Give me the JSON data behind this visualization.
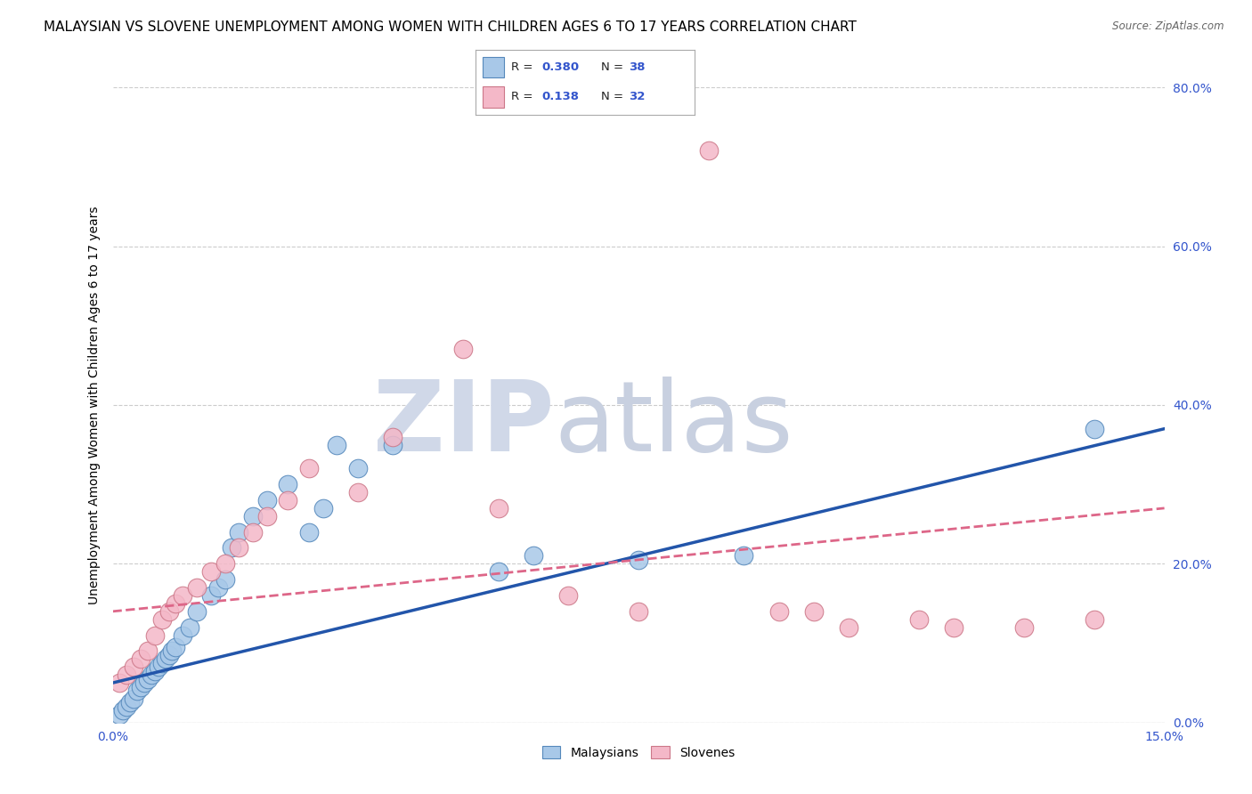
{
  "title": "MALAYSIAN VS SLOVENE UNEMPLOYMENT AMONG WOMEN WITH CHILDREN AGES 6 TO 17 YEARS CORRELATION CHART",
  "source": "Source: ZipAtlas.com",
  "ylabel": "Unemployment Among Women with Children Ages 6 to 17 years",
  "xlim": [
    0.0,
    15.0
  ],
  "ylim": [
    0.0,
    80.0
  ],
  "yticks_right": [
    0,
    20,
    40,
    60,
    80
  ],
  "ytick_labels_right": [
    "0.0%",
    "20.0%",
    "40.0%",
    "60.0%",
    "80.0%"
  ],
  "r_malaysian": 0.38,
  "n_malaysian": 38,
  "r_slovene": 0.138,
  "n_slovene": 32,
  "blue_color": "#a8c8e8",
  "blue_edge": "#5588bb",
  "pink_color": "#f4b8c8",
  "pink_edge": "#cc7788",
  "trend_blue": "#2255aa",
  "trend_pink": "#dd6688",
  "grid_color": "#cccccc",
  "background_color": "#ffffff",
  "title_fontsize": 11,
  "label_fontsize": 10,
  "tick_fontsize": 10,
  "tick_color": "#3355cc",
  "malaysian_x": [
    0.1,
    0.15,
    0.2,
    0.25,
    0.3,
    0.35,
    0.4,
    0.45,
    0.5,
    0.55,
    0.6,
    0.65,
    0.7,
    0.75,
    0.8,
    0.85,
    0.9,
    1.0,
    1.1,
    1.2,
    1.4,
    1.5,
    1.6,
    1.7,
    1.8,
    2.0,
    2.2,
    2.5,
    2.8,
    3.0,
    3.2,
    3.5,
    4.0,
    5.5,
    6.0,
    7.5,
    9.0,
    14.0
  ],
  "malaysian_y": [
    1.0,
    1.5,
    2.0,
    2.5,
    3.0,
    4.0,
    4.5,
    5.0,
    5.5,
    6.0,
    6.5,
    7.0,
    7.5,
    8.0,
    8.5,
    9.0,
    9.5,
    11.0,
    12.0,
    14.0,
    16.0,
    17.0,
    18.0,
    22.0,
    24.0,
    26.0,
    28.0,
    30.0,
    24.0,
    27.0,
    35.0,
    32.0,
    35.0,
    19.0,
    21.0,
    20.5,
    21.0,
    37.0
  ],
  "slovene_x": [
    0.1,
    0.2,
    0.3,
    0.4,
    0.5,
    0.6,
    0.7,
    0.8,
    0.9,
    1.0,
    1.2,
    1.4,
    1.6,
    1.8,
    2.0,
    2.2,
    2.5,
    2.8,
    3.5,
    4.0,
    5.0,
    5.5,
    6.5,
    7.5,
    8.5,
    9.5,
    10.0,
    10.5,
    11.5,
    12.0,
    13.0,
    14.0
  ],
  "slovene_y": [
    5.0,
    6.0,
    7.0,
    8.0,
    9.0,
    11.0,
    13.0,
    14.0,
    15.0,
    16.0,
    17.0,
    19.0,
    20.0,
    22.0,
    24.0,
    26.0,
    28.0,
    32.0,
    29.0,
    36.0,
    47.0,
    27.0,
    16.0,
    14.0,
    72.0,
    14.0,
    14.0,
    12.0,
    13.0,
    12.0,
    12.0,
    13.0
  ],
  "trend_blue_y0": 5.0,
  "trend_blue_y1": 37.0,
  "trend_pink_y0": 14.0,
  "trend_pink_y1": 27.0,
  "watermark_zip_color": "#d0d8e8",
  "watermark_atlas_color": "#c8d0e0"
}
